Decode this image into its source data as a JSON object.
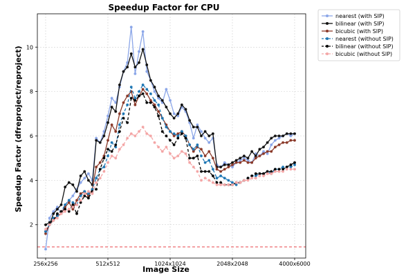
{
  "chart_data": {
    "type": "line",
    "title": "Speedup Factor for CPU",
    "xlabel": "Image Size",
    "ylabel": "Speedup Factor (dfreproject/reproject)",
    "xticks": [
      "256x256",
      "512x512",
      "1024x1024",
      "2048x2048",
      "4000x6000"
    ],
    "yticks": [
      2,
      4,
      6,
      8,
      10
    ],
    "ylim": [
      0.5,
      11.5
    ],
    "grid": true,
    "legend_position": "outside-top-right",
    "reference_line": {
      "y": 1.0,
      "color": "#e8454a",
      "style": "dashed"
    },
    "x": [
      256,
      281,
      306,
      331,
      356,
      381,
      406,
      431,
      456,
      481,
      506,
      531,
      556,
      581,
      606,
      631,
      656,
      681,
      706,
      731,
      756,
      781,
      806,
      831,
      856,
      881,
      906,
      931,
      956,
      981,
      1006,
      1031,
      1056,
      1081,
      1106,
      1131,
      1156,
      1181,
      1206,
      1231,
      1256,
      1281,
      1306,
      1331,
      1356,
      1381,
      1406,
      1431,
      1456,
      1481,
      1506,
      1531,
      1556,
      1581,
      1606,
      1631,
      1656,
      1681,
      1706,
      1731,
      1756,
      1781,
      1806,
      1831,
      1856
    ],
    "series": [
      {
        "name": "nearest (with SIP)",
        "color": "#8ba6e8",
        "dash": false,
        "values": [
          0.9,
          2.3,
          2.6,
          2.8,
          2.5,
          2.9,
          3.1,
          3.3,
          3.6,
          3.9,
          4.1,
          4.3,
          4.0,
          5.9,
          5.7,
          6.2,
          6.9,
          7.7,
          7.5,
          8.2,
          8.9,
          9.3,
          10.9,
          8.8,
          9.8,
          10.7,
          8.9,
          8.5,
          8.0,
          7.7,
          7.5,
          8.1,
          7.6,
          7.0,
          6.9,
          7.3,
          7.1,
          6.6,
          5.9,
          6.5,
          6.2,
          5.9,
          5.7,
          5.9,
          4.7,
          4.6,
          4.8,
          4.7,
          4.6,
          4.8,
          4.9,
          5.0,
          4.9,
          4.8,
          5.2,
          5.1,
          5.3,
          5.2,
          5.6,
          5.8,
          5.9,
          6.0,
          6.1,
          6.0,
          6.1
        ]
      },
      {
        "name": "bilinear (with SIP)",
        "color": "#111111",
        "dash": false,
        "values": [
          1.7,
          2.0,
          2.5,
          2.7,
          2.9,
          3.7,
          3.9,
          3.8,
          3.5,
          4.2,
          4.4,
          4.0,
          3.8,
          5.8,
          5.7,
          6.0,
          6.6,
          7.3,
          7.1,
          8.3,
          8.9,
          9.1,
          9.7,
          9.1,
          9.3,
          9.9,
          9.2,
          8.5,
          8.2,
          7.8,
          7.6,
          7.3,
          7.0,
          6.8,
          7.0,
          7.4,
          7.2,
          6.7,
          6.4,
          6.4,
          6.0,
          6.2,
          6.0,
          6.1,
          4.6,
          4.6,
          4.7,
          4.7,
          4.8,
          4.9,
          5.0,
          5.1,
          5.0,
          5.3,
          5.1,
          5.4,
          5.5,
          5.7,
          5.9,
          6.0,
          6.0,
          6.0,
          6.1,
          6.1,
          6.1
        ]
      },
      {
        "name": "bicubic (with SIP)",
        "color": "#8b3a2a",
        "dash": false,
        "values": [
          1.6,
          2.0,
          2.2,
          2.4,
          2.5,
          2.8,
          3.0,
          2.7,
          3.1,
          3.4,
          3.5,
          3.3,
          3.6,
          4.6,
          4.8,
          5.1,
          5.8,
          6.5,
          6.2,
          7.0,
          7.5,
          7.8,
          8.0,
          7.4,
          7.8,
          8.1,
          7.9,
          7.6,
          7.4,
          7.1,
          6.8,
          6.5,
          6.2,
          6.0,
          6.1,
          6.2,
          6.0,
          5.6,
          5.3,
          5.5,
          5.4,
          5.1,
          5.3,
          5.0,
          4.5,
          4.4,
          4.5,
          4.6,
          4.7,
          4.8,
          4.8,
          4.9,
          4.8,
          4.8,
          5.0,
          5.1,
          5.2,
          5.3,
          5.3,
          5.5,
          5.6,
          5.7,
          5.7,
          5.8,
          5.8
        ]
      },
      {
        "name": "nearest (without SIP)",
        "color": "#1f77b4",
        "dash": true,
        "values": [
          1.7,
          2.0,
          2.3,
          2.4,
          2.6,
          2.9,
          3.1,
          3.0,
          2.9,
          3.3,
          3.5,
          3.4,
          3.6,
          4.1,
          4.5,
          4.6,
          5.1,
          5.7,
          5.5,
          6.5,
          7.0,
          7.4,
          8.2,
          7.7,
          8.0,
          8.3,
          8.1,
          7.9,
          7.6,
          7.4,
          6.8,
          6.4,
          6.2,
          6.1,
          6.0,
          6.2,
          6.0,
          5.6,
          5.4,
          5.6,
          5.1,
          4.8,
          4.9,
          4.5,
          4.1,
          4.2,
          4.1,
          4.0,
          3.9,
          3.8,
          3.9,
          4.0,
          4.1,
          4.2,
          4.2,
          4.3,
          4.3,
          4.4,
          4.3,
          4.5,
          4.5,
          4.6,
          4.6,
          4.6,
          4.7
        ]
      },
      {
        "name": "bilinear (without SIP)",
        "color": "#000000",
        "dash": true,
        "values": [
          2.0,
          2.1,
          2.2,
          2.5,
          2.6,
          2.7,
          2.6,
          2.9,
          2.5,
          3.0,
          3.3,
          3.2,
          3.5,
          3.6,
          4.5,
          5.0,
          5.4,
          5.3,
          5.6,
          6.2,
          6.8,
          6.6,
          7.7,
          7.6,
          7.8,
          7.9,
          7.5,
          7.5,
          7.3,
          6.9,
          6.2,
          6.0,
          5.8,
          5.6,
          5.9,
          6.1,
          5.9,
          5.0,
          5.0,
          5.1,
          4.4,
          4.4,
          4.4,
          4.2,
          3.9,
          3.9,
          3.8,
          3.8,
          3.8,
          3.9,
          3.9,
          4.0,
          4.1,
          4.2,
          4.3,
          4.3,
          4.3,
          4.4,
          4.4,
          4.5,
          4.5,
          4.5,
          4.6,
          4.7,
          4.8
        ]
      },
      {
        "name": "bicubic (without SIP)",
        "color": "#f4a6a6",
        "dash": true,
        "values": [
          1.8,
          2.0,
          2.2,
          2.3,
          2.5,
          2.6,
          2.7,
          2.8,
          2.9,
          3.1,
          3.4,
          3.5,
          3.4,
          3.9,
          4.1,
          4.4,
          4.8,
          5.1,
          5.0,
          5.4,
          5.6,
          5.9,
          6.1,
          6.0,
          6.2,
          6.4,
          6.1,
          6.0,
          5.7,
          5.5,
          5.3,
          5.5,
          5.2,
          5.0,
          5.1,
          5.3,
          5.2,
          4.8,
          4.6,
          4.4,
          4.0,
          4.1,
          4.0,
          3.9,
          3.8,
          3.8,
          3.8,
          3.8,
          3.8,
          3.9,
          3.9,
          4.0,
          4.0,
          4.1,
          4.1,
          4.2,
          4.2,
          4.3,
          4.3,
          4.4,
          4.4,
          4.4,
          4.5,
          4.5,
          4.5
        ]
      }
    ]
  }
}
